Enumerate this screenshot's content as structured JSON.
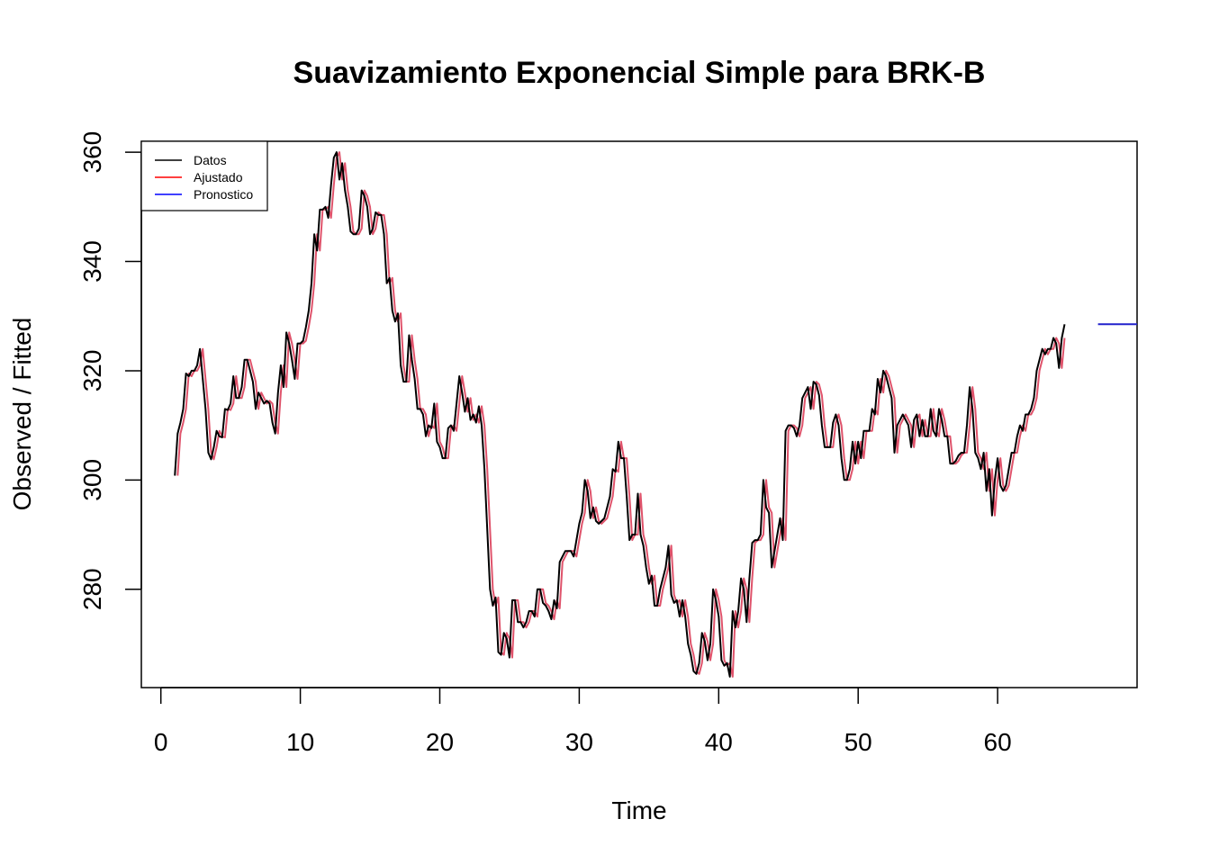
{
  "chart_data": {
    "type": "line",
    "title": "Suavizamiento Exponencial Simple para BRK-B",
    "xlabel": "Time",
    "ylabel": "Observed / Fitted",
    "xlim": [
      -1.4,
      70
    ],
    "ylim": [
      262,
      362
    ],
    "xticks": [
      0,
      10,
      20,
      30,
      40,
      50,
      60
    ],
    "yticks": [
      280,
      300,
      320,
      340,
      360
    ],
    "grid": false,
    "legend_position": "top-left",
    "colors": {
      "data": "#000000",
      "fitted": "#DF536B",
      "forecast": "#2222CC",
      "legend_fitted": "#FF0000",
      "legend_forecast": "#0000FF"
    },
    "series": [
      {
        "name": "Datos",
        "x_start": 1.0,
        "x_step": 0.2,
        "values": [
          300.8,
          308.5,
          310.5,
          313.0,
          319.5,
          319.0,
          320.0,
          320.0,
          321.0,
          324.0,
          318.5,
          313.0,
          305.0,
          303.8,
          306.0,
          309.0,
          308.0,
          307.8,
          313.0,
          312.8,
          314.0,
          319.0,
          315.0,
          315.0,
          317.0,
          322.0,
          322.0,
          320.0,
          318.0,
          313.0,
          316.0,
          315.0,
          314.0,
          314.5,
          314.0,
          310.5,
          308.5,
          316.0,
          321.0,
          317.0,
          327.0,
          325.0,
          322.0,
          318.5,
          325.0,
          325.0,
          325.5,
          328.0,
          331.0,
          336.0,
          345.0,
          342.0,
          349.5,
          349.5,
          350.0,
          348.0,
          354.0,
          359.0,
          360.0,
          355.0,
          358.0,
          353.0,
          350.0,
          345.5,
          345.0,
          345.0,
          346.0,
          353.0,
          352.0,
          350.0,
          345.0,
          346.0,
          349.0,
          348.5,
          348.5,
          345.0,
          336.0,
          337.0,
          331.0,
          329.0,
          330.5,
          321.0,
          318.0,
          318.0,
          326.5,
          322.0,
          318.5,
          313.0,
          313.0,
          312.0,
          308.0,
          310.0,
          309.5,
          314.0,
          307.0,
          306.0,
          304.0,
          304.0,
          309.5,
          310.0,
          309.0,
          314.0,
          319.0,
          316.0,
          312.5,
          315.0,
          311.0,
          312.0,
          310.5,
          313.5,
          310.0,
          302.0,
          291.0,
          280.0,
          277.0,
          278.5,
          268.5,
          268.0,
          272.0,
          271.0,
          267.5,
          278.0,
          278.0,
          274.0,
          274.0,
          273.0,
          274.0,
          276.0,
          276.0,
          275.0,
          280.0,
          280.0,
          277.5,
          277.0,
          276.0,
          274.5,
          278.0,
          276.5,
          285.0,
          286.0,
          287.0,
          287.0,
          287.0,
          286.0,
          289.0,
          292.0,
          294.0,
          300.0,
          298.0,
          293.0,
          295.0,
          292.5,
          292.0,
          292.5,
          293.0,
          295.0,
          297.0,
          302.0,
          301.5,
          307.0,
          304.0,
          304.0,
          297.0,
          289.0,
          290.0,
          290.0,
          297.5,
          290.0,
          288.0,
          284.0,
          281.0,
          282.5,
          277.0,
          277.0,
          280.0,
          282.0,
          284.0,
          288.0,
          279.0,
          277.5,
          278.0,
          275.0,
          278.0,
          275.0,
          270.0,
          268.0,
          265.0,
          264.5,
          266.5,
          272.0,
          270.5,
          267.0,
          270.0,
          280.0,
          278.0,
          275.0,
          267.0,
          266.0,
          266.5,
          264.0,
          276.0,
          273.0,
          276.0,
          282.0,
          280.0,
          274.0,
          282.0,
          288.5,
          289.0,
          289.0,
          290.0,
          300.0,
          295.0,
          294.0,
          284.0,
          287.0,
          290.0,
          293.0,
          289.0,
          309.0,
          310.0,
          310.0,
          309.5,
          308.0,
          310.0,
          315.0,
          316.0,
          317.0,
          313.0,
          318.0,
          317.5,
          315.5,
          310.0,
          306.0,
          306.0,
          306.0,
          310.5,
          312.0,
          310.0,
          304.0,
          300.0,
          300.0,
          302.0,
          307.0,
          303.0,
          307.0,
          304.0,
          309.0,
          309.0,
          309.0,
          313.0,
          312.0,
          318.5,
          316.0,
          320.0,
          319.0,
          317.0,
          315.0,
          305.0,
          310.0,
          311.0,
          312.0,
          311.0,
          310.0,
          306.0,
          311.0,
          312.0,
          308.0,
          311.0,
          308.0,
          308.0,
          313.0,
          309.0,
          308.0,
          313.0,
          311.0,
          308.0,
          308.0,
          303.0,
          303.0,
          303.5,
          304.5,
          305.0,
          305.0,
          310.0,
          317.0,
          313.0,
          305.0,
          304.0,
          302.0,
          305.0,
          298.0,
          302.0,
          293.5,
          300.0,
          304.0,
          299.0,
          298.0,
          299.0,
          302.0,
          305.0,
          305.0,
          308.0,
          310.0,
          309.0,
          312.0,
          312.0,
          313.0,
          315.0,
          320.0,
          322.0,
          324.0,
          323.0,
          324.0,
          324.0,
          326.0,
          325.0,
          320.5,
          326.0,
          328.5
        ]
      },
      {
        "name": "Ajustado",
        "x_start": 1.2,
        "x_step": 0.2,
        "values": [
          300.8,
          308.5,
          310.5,
          313.0,
          319.5,
          319.0,
          320.0,
          320.0,
          321.0,
          324.0,
          318.5,
          313.0,
          305.0,
          303.8,
          306.0,
          309.0,
          308.0,
          307.8,
          313.0,
          312.8,
          314.0,
          319.0,
          315.0,
          315.0,
          317.0,
          322.0,
          322.0,
          320.0,
          318.0,
          313.0,
          316.0,
          315.0,
          314.0,
          314.5,
          314.0,
          310.5,
          308.5,
          316.0,
          321.0,
          317.0,
          327.0,
          325.0,
          322.0,
          318.5,
          325.0,
          325.0,
          325.5,
          328.0,
          331.0,
          336.0,
          345.0,
          342.0,
          349.5,
          349.5,
          350.0,
          348.0,
          354.0,
          359.0,
          360.0,
          355.0,
          358.0,
          353.0,
          350.0,
          345.5,
          345.0,
          345.0,
          346.0,
          353.0,
          352.0,
          350.0,
          345.0,
          346.0,
          349.0,
          348.5,
          348.5,
          345.0,
          336.0,
          337.0,
          331.0,
          329.0,
          330.5,
          321.0,
          318.0,
          318.0,
          326.5,
          322.0,
          318.5,
          313.0,
          313.0,
          312.0,
          308.0,
          310.0,
          309.5,
          314.0,
          307.0,
          306.0,
          304.0,
          304.0,
          309.5,
          310.0,
          309.0,
          314.0,
          319.0,
          316.0,
          312.5,
          315.0,
          311.0,
          312.0,
          310.5,
          313.5,
          310.0,
          302.0,
          291.0,
          280.0,
          277.0,
          278.5,
          268.5,
          268.0,
          272.0,
          271.0,
          267.5,
          278.0,
          278.0,
          274.0,
          274.0,
          273.0,
          274.0,
          276.0,
          276.0,
          275.0,
          280.0,
          280.0,
          277.5,
          277.0,
          276.0,
          274.5,
          278.0,
          276.5,
          285.0,
          286.0,
          287.0,
          287.0,
          287.0,
          286.0,
          289.0,
          292.0,
          294.0,
          300.0,
          298.0,
          293.0,
          295.0,
          292.5,
          292.0,
          292.5,
          293.0,
          295.0,
          297.0,
          302.0,
          301.5,
          307.0,
          304.0,
          304.0,
          297.0,
          289.0,
          290.0,
          290.0,
          297.5,
          290.0,
          288.0,
          284.0,
          281.0,
          282.5,
          277.0,
          277.0,
          280.0,
          282.0,
          284.0,
          288.0,
          279.0,
          277.5,
          278.0,
          275.0,
          278.0,
          275.0,
          270.0,
          268.0,
          265.0,
          264.5,
          266.5,
          272.0,
          270.5,
          267.0,
          270.0,
          280.0,
          278.0,
          275.0,
          267.0,
          266.0,
          266.5,
          264.0,
          276.0,
          273.0,
          276.0,
          282.0,
          280.0,
          274.0,
          282.0,
          288.5,
          289.0,
          289.0,
          290.0,
          300.0,
          295.0,
          294.0,
          284.0,
          287.0,
          290.0,
          293.0,
          289.0,
          309.0,
          310.0,
          310.0,
          309.5,
          308.0,
          310.0,
          315.0,
          316.0,
          317.0,
          313.0,
          318.0,
          317.5,
          315.5,
          310.0,
          306.0,
          306.0,
          306.0,
          310.5,
          312.0,
          310.0,
          304.0,
          300.0,
          300.0,
          302.0,
          307.0,
          303.0,
          307.0,
          304.0,
          309.0,
          309.0,
          309.0,
          313.0,
          312.0,
          318.5,
          316.0,
          320.0,
          319.0,
          317.0,
          315.0,
          305.0,
          310.0,
          311.0,
          312.0,
          311.0,
          310.0,
          306.0,
          311.0,
          312.0,
          308.0,
          311.0,
          308.0,
          308.0,
          313.0,
          309.0,
          308.0,
          313.0,
          311.0,
          308.0,
          308.0,
          303.0,
          303.0,
          303.5,
          304.5,
          305.0,
          305.0,
          310.0,
          317.0,
          313.0,
          305.0,
          304.0,
          302.0,
          305.0,
          298.0,
          302.0,
          293.5,
          300.0,
          304.0,
          299.0,
          298.0,
          299.0,
          302.0,
          305.0,
          305.0,
          308.0,
          310.0,
          309.0,
          312.0,
          312.0,
          313.0,
          315.0,
          320.0,
          322.0,
          324.0,
          323.0,
          324.0,
          324.0,
          326.0,
          325.0,
          320.5,
          326.0
        ]
      },
      {
        "name": "Pronostico",
        "x": [
          67.2,
          70.0
        ],
        "values": [
          328.5,
          328.5
        ]
      }
    ]
  }
}
